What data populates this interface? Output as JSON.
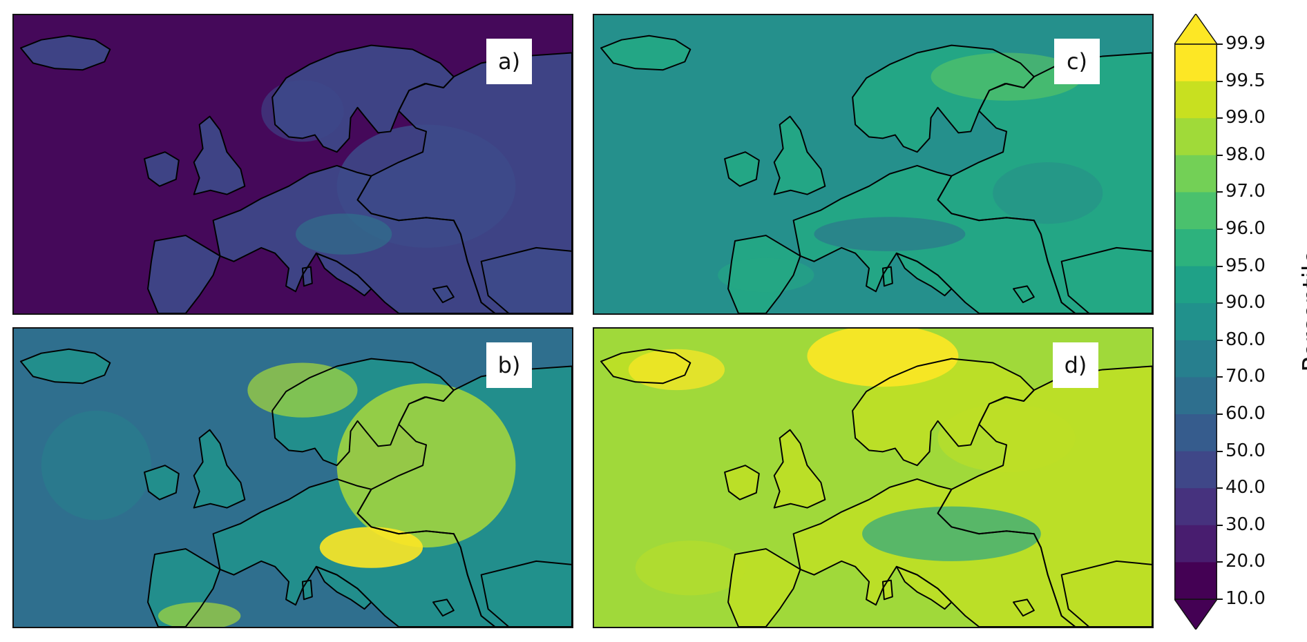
{
  "panels": [
    {
      "id": "a",
      "label": "a)",
      "base": "#45095a",
      "mid": "#3d4a8a",
      "hi": "#2a7f8e",
      "accent": "#9fd83e",
      "pattern": "low"
    },
    {
      "id": "b",
      "label": "b)",
      "base": "#2f6f8e",
      "mid": "#21918c",
      "hi": "#a7d83b",
      "accent": "#fde725",
      "pattern": "mid"
    },
    {
      "id": "c",
      "label": "c)",
      "base": "#25908c",
      "mid": "#24a884",
      "hi": "#5cc863",
      "accent": "#2d6f8e",
      "pattern": "even"
    },
    {
      "id": "d",
      "label": "d)",
      "base": "#a0d93a",
      "mid": "#bedf26",
      "hi": "#fde725",
      "accent": "#2ea585",
      "pattern": "high"
    }
  ],
  "colorbar": {
    "title": "Percentile",
    "ticks": [
      "99.9",
      "99.5",
      "99.0",
      "98.0",
      "97.0",
      "96.0",
      "95.0",
      "90.0",
      "80.0",
      "70.0",
      "60.0",
      "50.0",
      "40.0",
      "30.0",
      "20.0",
      "10.0"
    ],
    "colors": [
      "#fde725",
      "#c8e020",
      "#a0da39",
      "#73d056",
      "#4ac16d",
      "#2db27d",
      "#1fa187",
      "#21918c",
      "#277f8e",
      "#2e6f8e",
      "#365c8d",
      "#3f4788",
      "#46327e",
      "#481d6f",
      "#440154"
    ],
    "extend_top": "#fde725",
    "extend_bottom": "#440154"
  }
}
